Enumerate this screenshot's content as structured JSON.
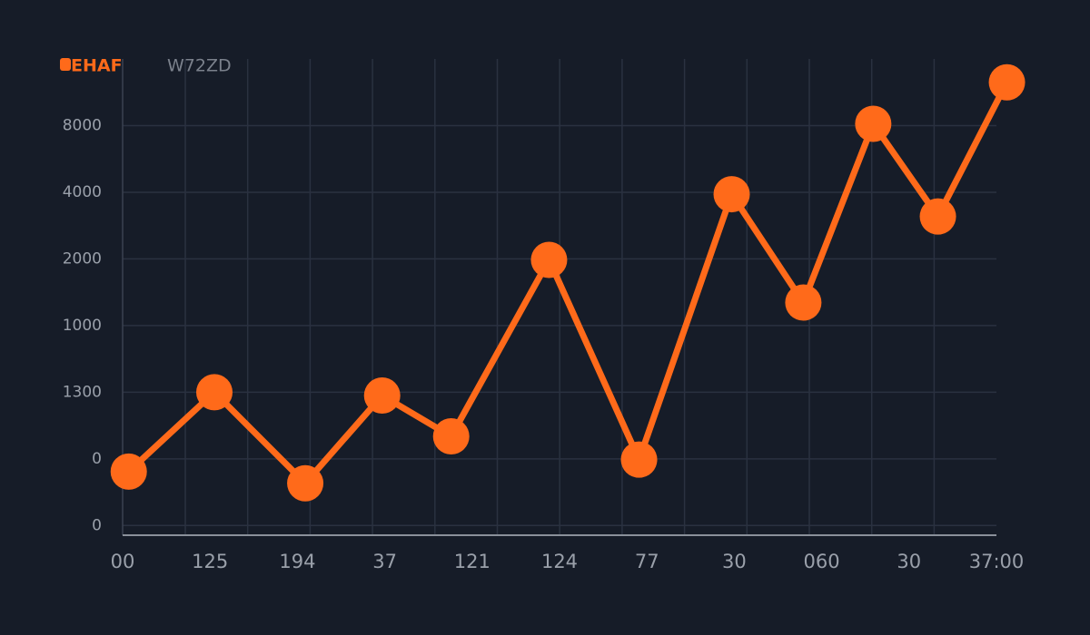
{
  "chart_data": {
    "type": "line",
    "subtitle": "W72ZD",
    "scale": "log",
    "grid": true,
    "series": [
      {
        "name": "EHAF",
        "color": "#ff6a1a",
        "x": [
          0.07,
          1.05,
          2.09,
          2.97,
          3.76,
          4.88,
          5.91,
          6.97,
          7.79,
          8.59,
          9.33,
          10.12
        ],
        "values": [
          219,
          500,
          194,
          483,
          316,
          1980,
          248,
          3920,
          1270,
          8150,
          3110,
          12550
        ]
      }
    ],
    "xlim": [
      0,
      10
    ],
    "xticks": [
      {
        "value": 0,
        "label": "00"
      },
      {
        "value": 1,
        "label": "125"
      },
      {
        "value": 2,
        "label": "194"
      },
      {
        "value": 3,
        "label": "37"
      },
      {
        "value": 4,
        "label": "121"
      },
      {
        "value": 5,
        "label": "124"
      },
      {
        "value": 6,
        "label": "77"
      },
      {
        "value": 7,
        "label": "30"
      },
      {
        "value": 8,
        "label": "060"
      },
      {
        "value": 9,
        "label": "30"
      },
      {
        "value": 10,
        "label": "37:00"
      }
    ],
    "ylim": [
      113,
      16000
    ],
    "yticks": [
      {
        "value": 125,
        "label": "0"
      },
      {
        "value": 250,
        "label": "0"
      },
      {
        "value": 500,
        "label": "1300"
      },
      1000,
      2000,
      4000,
      8000
    ]
  }
}
